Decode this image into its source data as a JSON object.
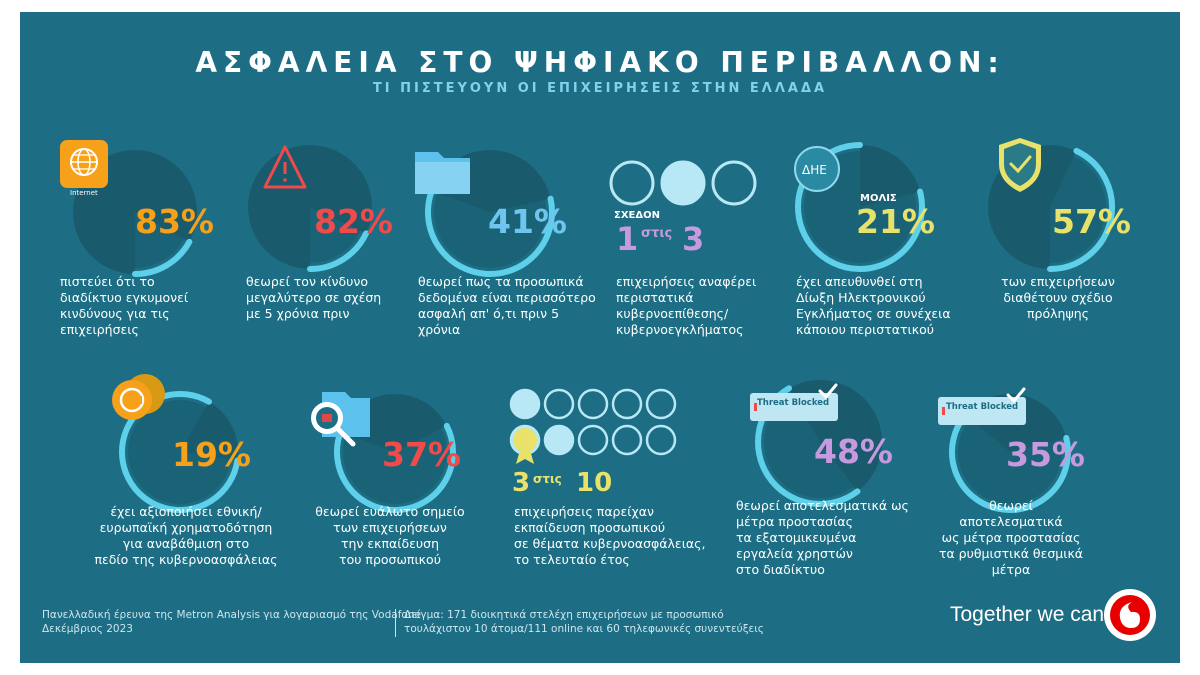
{
  "header": {
    "title": "ΑΣΦΑΛΕΙΑ ΣΤΟ ΨΗΦΙΑΚΟ ΠΕΡΙΒΑΛΛΟΝ:",
    "subtitle": "ΤΙ ΠΙΣΤΕΥΟΥΝ ΟΙ ΕΠΙΧΕΙΡΗΣΕΙΣ ΣΤΗΝ ΕΛΛΑΔΑ"
  },
  "colors": {
    "background": "#1d6e84",
    "arc": "#5fd0ea",
    "disk": "#195a6c",
    "orange": "#f7a019",
    "red": "#f04a4a",
    "blue": "#6ec5ee",
    "yellow": "#e9e26a",
    "purple": "#c79ae0",
    "brand_red": "#e60000"
  },
  "stats": [
    {
      "value": "83%",
      "fraction": 0.83,
      "text": "πιστεύει ότι το\nδιαδίκτυο εγκυμονεί\nκινδύνους για τις\nεπιχειρήσεις",
      "icon": "globe-icon",
      "icon_label": "Internet"
    },
    {
      "value": "82%",
      "fraction": 0.82,
      "text": "θεωρεί τον κίνδυνο\nμεγαλύτερο σε σχέση\nμε 5 χρόνια πριν",
      "icon": "warning-icon"
    },
    {
      "value": "41%",
      "fraction": 0.41,
      "text": "θεωρεί πως τα προσωπικά\nδεδομένα είναι περισσότερο\nασφαλή απ' ό,τι πριν 5\nχρόνια",
      "icon": "folder-icon"
    },
    {
      "prefix": "ΣΧΕΔΟΝ",
      "num": "1",
      "mid": "στις",
      "den": "3",
      "text": "επιχειρήσεις αναφέρει\nπεριστατικά\nκυβερνοεπίθεσης/\nκυβερνοεγκλήματος",
      "icon": "circles-icon"
    },
    {
      "value": "21%",
      "prefix": "ΜΟΛΙΣ",
      "fraction": 0.21,
      "text": "έχει απευθυνθεί στη\nΔίωξη Ηλεκτρονικού\nΕγκλήματος σε συνέχεια\nκάποιου περιστατικού",
      "icon": "badge-icon",
      "icon_label": "ΔΗΕ"
    },
    {
      "value": "57%",
      "fraction": 0.57,
      "text": "των επιχειρήσεων\nδιαθέτουν σχέδιο\nπρόληψης",
      "icon": "shield-check-icon"
    },
    {
      "value": "19%",
      "fraction": 0.19,
      "text": "έχει αξιοποιήσει εθνική/\nευρωπαϊκή χρηματοδότηση\nγια αναβάθμιση στο\nπεδίο της κυβερνοασφάλειας",
      "icon": "coins-icon"
    },
    {
      "value": "37%",
      "fraction": 0.37,
      "text": "θεωρεί ευάλωτο σημείο\nτων επιχειρήσεων\nτην εκπαίδευση\nτου προσωπικού",
      "icon": "magnifier-folder-icon"
    },
    {
      "num": "3",
      "mid": "στις",
      "den": "10",
      "text": "επιχειρήσεις παρείχαν\nεκπαίδευση προσωπικού\nσε θέματα κυβερνοασφάλειας,\nτο τελευταίο έτος",
      "icon": "medal-circles-icon"
    },
    {
      "value": "48%",
      "fraction": 0.48,
      "text": "θεωρεί αποτελεσματικά ως\nμέτρα προστασίας\nτα εξατομικευμένα\nεργαλεία χρηστών\nστο διαδίκτυο",
      "icon": "threat-blocked-icon",
      "icon_label": "Threat Blocked"
    },
    {
      "value": "35%",
      "fraction": 0.35,
      "text": "θεωρεί αποτελεσματικά\nως μέτρα προστασίας\nτα ρυθμιστικά θεσμικά\nμέτρα",
      "icon": "threat-blocked-icon",
      "icon_label": "Threat Blocked"
    }
  ],
  "footer": {
    "source": "Πανελλαδική έρευνα της Metron Analysis για λογαριασμό της Vodafone\nΔεκέμβριος 2023",
    "sample": "Δείγμα: 171 διοικητικά στελέχη επιχειρήσεων με προσωπικό\nτουλάχιστον 10 άτομα/111 online και 60 τηλεφωνικές συνεντεύξεις",
    "slogan": "Together we can"
  }
}
